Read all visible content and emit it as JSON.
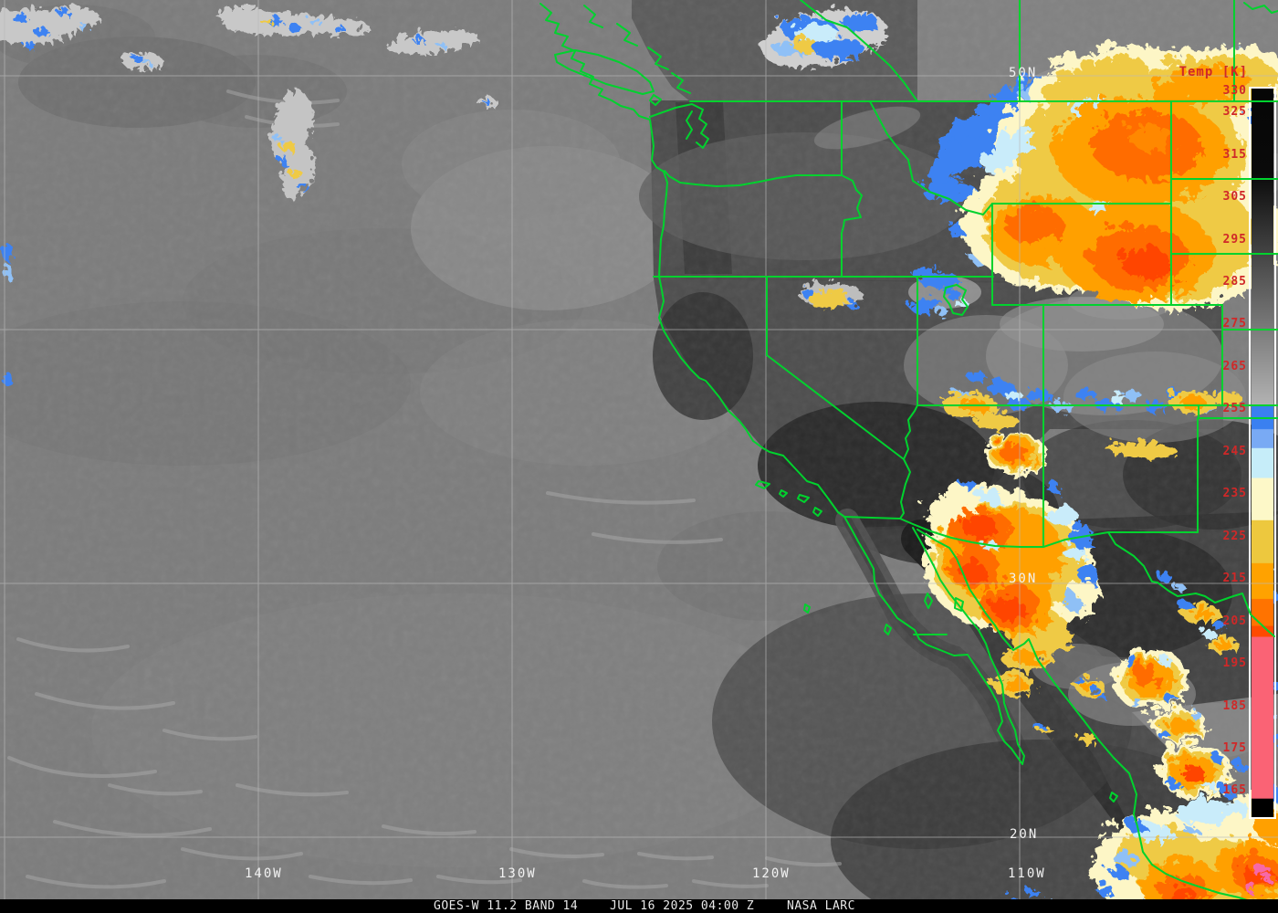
{
  "image": {
    "description": "GOES-West infrared satellite image of the eastern Pacific, western United States and northwestern Mexico with colorized cloud-top temperatures",
    "band": "11.2 micron IR window (Band 14)"
  },
  "footer": {
    "sensor": "GOES-W 11.2 BAND 14",
    "timestamp": "JUL 16 2025 04:00 Z",
    "credit": "NASA LARC"
  },
  "colorbar": {
    "title": "Temp [K]",
    "unit": "K",
    "ticks": [
      "330",
      "325",
      "315",
      "305",
      "295",
      "285",
      "275",
      "265",
      "255",
      "245",
      "235",
      "225",
      "215",
      "205",
      "195",
      "185",
      "175",
      "165"
    ],
    "top_value": 330,
    "bottom_value": 162,
    "label_color": "#d02828",
    "palette": {
      "warm_black": "#060606",
      "gray_ramp_end": "#b2b2b2",
      "blue": "#3a80f0",
      "light_blue": "#79aaf4",
      "pale_cyan": "#c6edf9",
      "cream": "#fdf8c8",
      "gold": "#edc83e",
      "orange": "#ffa200",
      "dark_orange": "#ff7300",
      "orange_red": "#fe4a00",
      "pink": "#fa6375",
      "cold_black": "#000000"
    }
  },
  "grid": {
    "lat_labels": [
      "50N",
      "30N",
      "20N"
    ],
    "lon_labels": [
      "140W",
      "130W",
      "120W",
      "110W"
    ],
    "label_color": "#f2f2f2",
    "line_color": "#b9b9b9"
  },
  "map_colors": {
    "boundary_green": "#00d22e",
    "ocean_gray": "#7c7c7c"
  }
}
